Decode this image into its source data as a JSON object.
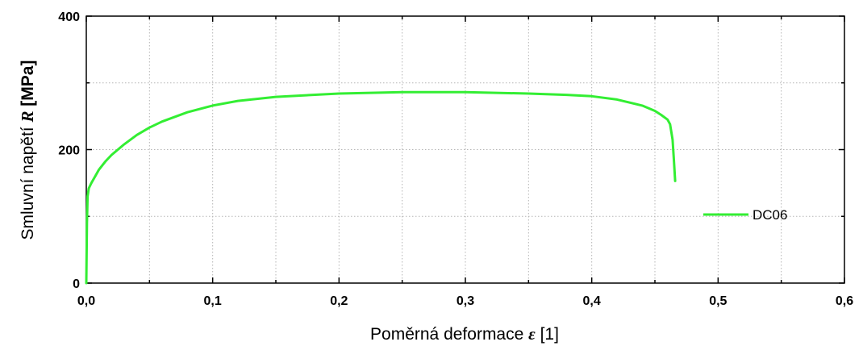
{
  "chart_data": {
    "type": "line",
    "title": "",
    "xlabel": {
      "prefix": "Poměrná deformace ",
      "symbol": "ε",
      "suffix": " [1]"
    },
    "ylabel": {
      "prefix": "Smluvní napětí ",
      "symbol": "R",
      "suffix": " [MPa]"
    },
    "xlim": [
      0,
      0.6
    ],
    "ylim": [
      0,
      400
    ],
    "x_ticks": [
      "0,0",
      "0,1",
      "0,2",
      "0,3",
      "0,4",
      "0,5",
      "0,6"
    ],
    "x_tick_values": [
      0,
      0.1,
      0.2,
      0.3,
      0.4,
      0.5,
      0.6
    ],
    "y_ticks": [
      "0",
      "200",
      "400"
    ],
    "y_tick_values": [
      0,
      200,
      400
    ],
    "grid": true,
    "legend_position": "right",
    "series": [
      {
        "name": "DC06",
        "color": "#33ee33",
        "x": [
          0,
          0.0005,
          0.001,
          0.002,
          0.004,
          0.007,
          0.01,
          0.015,
          0.02,
          0.03,
          0.04,
          0.05,
          0.06,
          0.08,
          0.1,
          0.12,
          0.15,
          0.2,
          0.25,
          0.3,
          0.35,
          0.38,
          0.4,
          0.42,
          0.44,
          0.45,
          0.455,
          0.46,
          0.462,
          0.464,
          0.465,
          0.466
        ],
        "y": [
          0,
          90,
          130,
          142,
          150,
          160,
          170,
          182,
          192,
          208,
          222,
          233,
          242,
          256,
          266,
          273,
          279,
          284,
          286,
          286,
          284,
          282,
          280,
          275,
          266,
          258,
          252,
          245,
          238,
          215,
          185,
          153
        ]
      }
    ]
  }
}
